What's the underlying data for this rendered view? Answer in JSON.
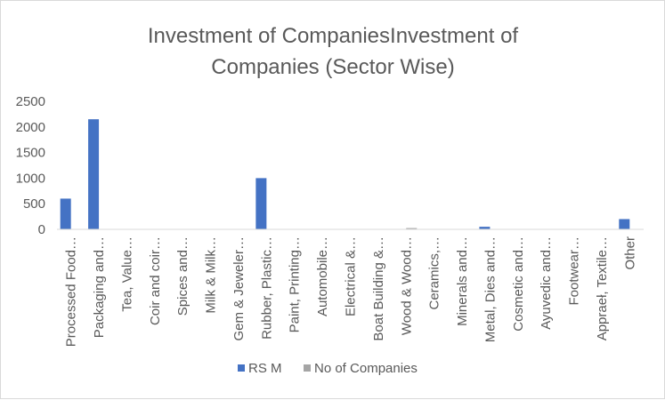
{
  "colors": {
    "series1": "#4472C4",
    "series2": "#A5A5A5",
    "axis": "#d9d9d9",
    "text": "#595959"
  },
  "chart_data": {
    "type": "bar",
    "title_lines": [
      "Investment of CompaniesInvestment  of",
      "Companies (Sector Wise)"
    ],
    "categories": [
      "Processed Food…",
      "Packaging and…",
      "Tea,  Value…",
      "Coir and coir…",
      "Spices and…",
      "Milk & Milk…",
      "Gem & Jeweler…",
      "Rubber, Plastic…",
      "Paint, Printing…",
      "Automobile…",
      "Electrical &…",
      "Boat Building &…",
      "Wood & Wood…",
      "Ceramics,…",
      "Minerals and…",
      "Metal, Dies and…",
      "Cosmetic and…",
      "Ayuvedic and…",
      "Footwear…",
      "Appraeł, Textile…",
      "Other"
    ],
    "series": [
      {
        "name": "RS M",
        "values": [
          600,
          2150,
          0,
          0,
          0,
          0,
          0,
          1000,
          0,
          0,
          0,
          0,
          0,
          0,
          0,
          50,
          0,
          0,
          0,
          0,
          200
        ]
      },
      {
        "name": "No of Companies",
        "values": [
          0,
          0,
          0,
          0,
          0,
          0,
          0,
          0,
          0,
          0,
          0,
          0,
          25,
          0,
          0,
          0,
          0,
          0,
          0,
          0,
          0
        ]
      }
    ],
    "ylim": [
      0,
      2500
    ],
    "yticks": [
      "0",
      "500",
      "1000",
      "1500",
      "2000",
      "2500"
    ],
    "xlabel": "",
    "ylabel": "",
    "legend_position": "bottom",
    "grid": false
  }
}
